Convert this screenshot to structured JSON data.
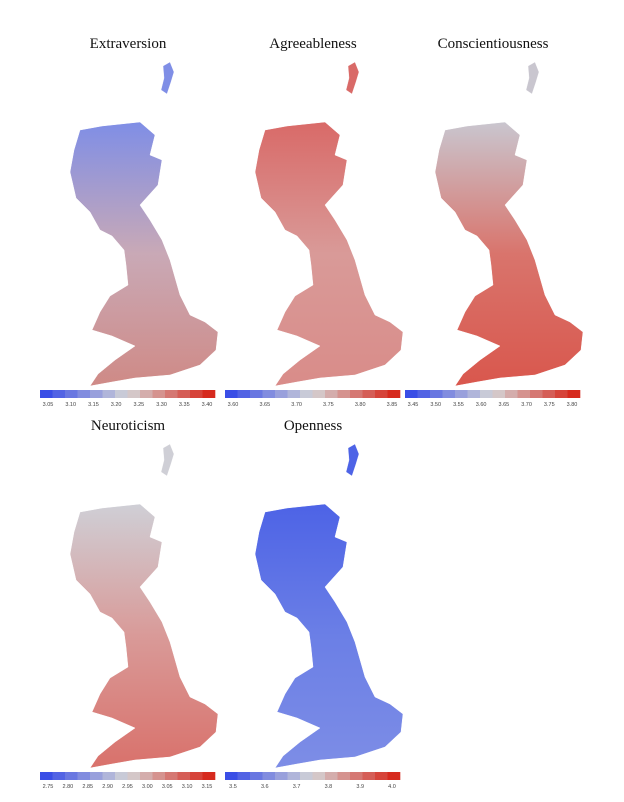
{
  "panels": [
    {
      "title": "Extraversion",
      "ticks": [
        "3.05",
        "3.10",
        "3.15",
        "3.20",
        "3.25",
        "3.30",
        "3.35",
        "3.40"
      ]
    },
    {
      "title": "Agreeableness",
      "ticks": [
        "3.60",
        "3.65",
        "3.70",
        "3.75",
        "3.80",
        "3.85"
      ]
    },
    {
      "title": "Conscientiousness",
      "ticks": [
        "3.45",
        "3.50",
        "3.55",
        "3.60",
        "3.65",
        "3.70",
        "3.75",
        "3.80"
      ]
    },
    {
      "title": "Neuroticism",
      "ticks": [
        "2.75",
        "2.80",
        "2.85",
        "2.90",
        "2.95",
        "3.00",
        "3.05",
        "3.10",
        "3.15"
      ]
    },
    {
      "title": "Openness",
      "ticks": [
        "3.5",
        "3.6",
        "3.7",
        "3.8",
        "3.9",
        "4.0"
      ]
    }
  ]
}
